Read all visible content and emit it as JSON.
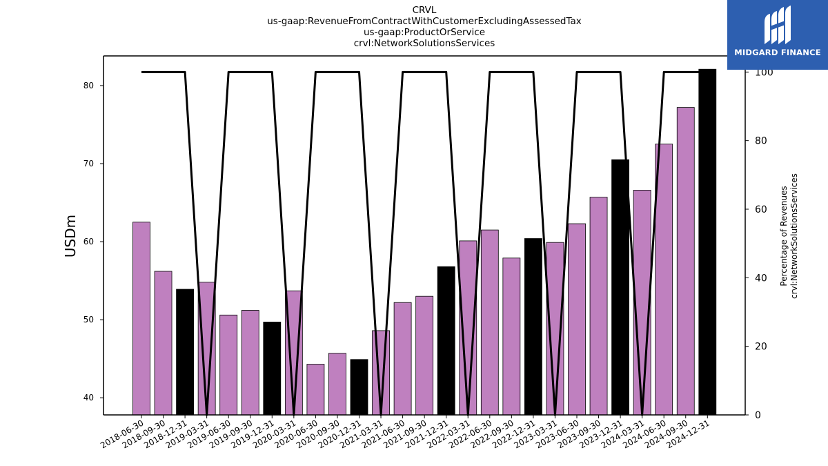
{
  "title_lines": [
    "CRVL",
    "us-gaap:RevenueFromContractWithCustomerExcludingAssessedTax",
    "us-gaap:ProductOrService",
    "crvl:NetworkSolutionsServices"
  ],
  "logo": {
    "text": "MIDGARD FINANCE",
    "icon": "midgard-logo-icon",
    "background": "#2d5fb0"
  },
  "chart_data": {
    "type": "bar",
    "x": [
      "2018-06-30",
      "2018-09-30",
      "2018-12-31",
      "2019-03-31",
      "2019-06-30",
      "2019-09-30",
      "2019-12-31",
      "2020-03-31",
      "2020-06-30",
      "2020-09-30",
      "2020-12-31",
      "2021-03-31",
      "2021-06-30",
      "2021-09-30",
      "2021-12-31",
      "2022-03-31",
      "2022-06-30",
      "2022-09-30",
      "2022-12-31",
      "2023-03-31",
      "2023-06-30",
      "2023-09-30",
      "2023-12-31",
      "2024-03-31",
      "2024-06-30",
      "2024-09-30",
      "2024-12-31"
    ],
    "series": [
      {
        "type": "bar",
        "values": [
          62.5,
          56.2,
          53.9,
          54.8,
          50.6,
          51.2,
          49.7,
          53.7,
          44.3,
          45.7,
          44.9,
          48.6,
          52.2,
          53.0,
          56.8,
          60.1,
          61.5,
          57.9,
          60.4,
          59.9,
          62.3,
          65.7,
          70.5,
          66.6,
          72.5,
          77.2,
          82.1
        ],
        "colors": [
          "#bf80bf",
          "#bf80bf",
          "#000000",
          "#bf80bf",
          "#bf80bf",
          "#bf80bf",
          "#000000",
          "#bf80bf",
          "#bf80bf",
          "#bf80bf",
          "#000000",
          "#bf80bf",
          "#bf80bf",
          "#bf80bf",
          "#000000",
          "#bf80bf",
          "#bf80bf",
          "#bf80bf",
          "#000000",
          "#bf80bf",
          "#bf80bf",
          "#bf80bf",
          "#000000",
          "#bf80bf",
          "#bf80bf",
          "#bf80bf",
          "#000000"
        ],
        "axis": "left"
      },
      {
        "type": "line",
        "values": [
          100,
          100,
          100,
          0,
          100,
          100,
          100,
          0,
          100,
          100,
          100,
          0,
          100,
          100,
          100,
          0,
          100,
          100,
          100,
          0,
          100,
          100,
          100,
          0,
          100,
          100,
          100
        ],
        "color": "#000000",
        "axis": "right"
      }
    ],
    "ylabel": "USDm",
    "ylim": [
      37.8,
      83.8
    ],
    "yticks": [
      40,
      50,
      60,
      70,
      80
    ],
    "y2label_lines": [
      "Percentage of Revenues",
      "crvl:NetworkSolutionsServices"
    ],
    "y2lim": [
      0,
      104.7
    ],
    "y2ticks": [
      0,
      20,
      40,
      60,
      80,
      100
    ],
    "bar_color": "#bf80bf",
    "highlight_color": "#000000",
    "grid": false,
    "legend": "none"
  }
}
